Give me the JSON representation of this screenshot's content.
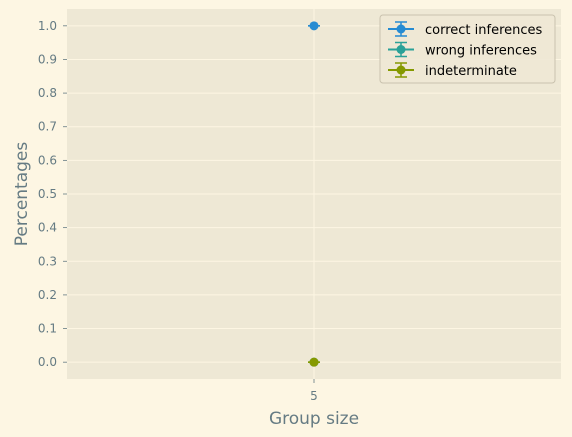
{
  "chart_data": {
    "type": "scatter",
    "xlabel": "Group size",
    "ylabel": "Percentages",
    "x_ticks": [
      "5"
    ],
    "y_ticks": [
      "0.0",
      "0.1",
      "0.2",
      "0.3",
      "0.4",
      "0.5",
      "0.6",
      "0.7",
      "0.8",
      "0.9",
      "1.0"
    ],
    "ylim": [
      -0.05,
      1.05
    ],
    "xlim": [
      4.75,
      5.25
    ],
    "grid": true,
    "legend_position": "top-right",
    "series": [
      {
        "name": "correct inferences",
        "color": "#268BD2",
        "x": [
          5
        ],
        "y": [
          1.0
        ],
        "yerr": [
          0.0
        ]
      },
      {
        "name": "wrong inferences",
        "color": "#2AA198",
        "x": [
          5
        ],
        "y": [
          0.0
        ],
        "yerr": [
          0.0
        ]
      },
      {
        "name": "indeterminate",
        "color": "#859900",
        "x": [
          5
        ],
        "y": [
          0.0
        ],
        "yerr": [
          0.0
        ]
      }
    ],
    "colors": {
      "figure_bg": "#FDF6E3",
      "axes_bg": "#EEE8D5",
      "grid": "#FDF6E3",
      "text": "#657B83",
      "legend_bg": "#EEE8D5",
      "legend_border": "#C9C2AE"
    }
  }
}
